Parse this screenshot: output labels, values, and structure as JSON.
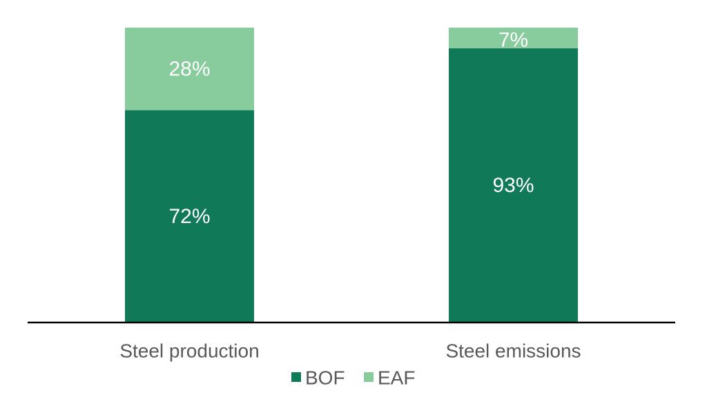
{
  "chart_data": {
    "type": "bar",
    "stacked": true,
    "categories": [
      "Steel production",
      "Steel emissions"
    ],
    "series": [
      {
        "name": "BOF",
        "values": [
          72,
          93
        ],
        "labels": [
          "72%",
          "93%"
        ],
        "color": "#107a58"
      },
      {
        "name": "EAF",
        "values": [
          28,
          7
        ],
        "labels": [
          "28%",
          "7%"
        ],
        "color": "#88cc9e"
      }
    ],
    "ylim": [
      0,
      100
    ],
    "grid": false,
    "legend_position": "bottom",
    "axis_color": "#000000"
  }
}
